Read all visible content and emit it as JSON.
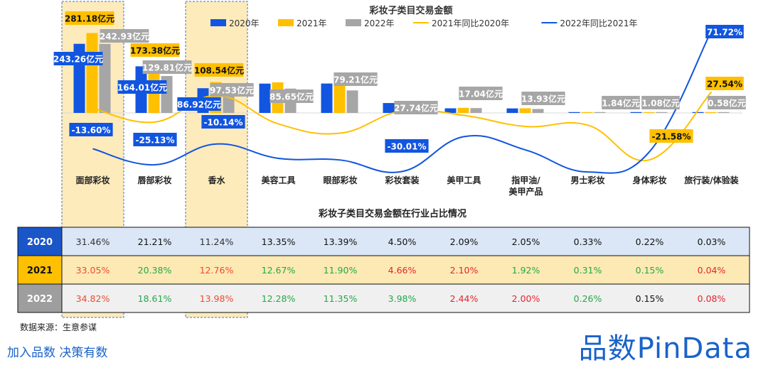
{
  "chart_data": [
    {
      "type": "bar",
      "title": "彩妆子类目交易金额",
      "categories": [
        "面部彩妆",
        "唇部彩妆",
        "香水",
        "美容工具",
        "眼部彩妆",
        "彩妆套装",
        "美甲工具",
        "指甲油/美甲产品",
        "男士彩妆",
        "身体彩妆",
        "旅行装/体验装"
      ],
      "category_lines": [
        [
          "面部彩妆"
        ],
        [
          "唇部彩妆"
        ],
        [
          "香水"
        ],
        [
          "美容工具"
        ],
        [
          "眼部彩妆"
        ],
        [
          "彩妆套装"
        ],
        [
          "美甲工具"
        ],
        [
          "指甲油/",
          "美甲产品"
        ],
        [
          "男士彩妆"
        ],
        [
          "身体彩妆"
        ],
        [
          "旅行装/体验装"
        ]
      ],
      "unit": "亿元",
      "series": [
        {
          "name": "2020年",
          "kind": "bar",
          "color": "#1155e0",
          "values": [
            243.26,
            164.01,
            86.92,
            103.2,
            103.5,
            34.8,
            16.2,
            15.9,
            2.55,
            1.7,
            0.23
          ]
        },
        {
          "name": "2021年",
          "kind": "bar",
          "color": "#ffc000",
          "values": [
            281.18,
            173.38,
            108.54,
            107.8,
            101.2,
            39.6,
            17.9,
            16.3,
            2.64,
            1.28,
            0.34
          ]
        },
        {
          "name": "2022年",
          "kind": "bar",
          "color": "#a6a6a6",
          "values": [
            242.93,
            129.81,
            97.53,
            85.65,
            79.21,
            27.74,
            17.04,
            13.93,
            1.84,
            1.08,
            0.58
          ]
        },
        {
          "name": "2021年同比2020年",
          "kind": "line",
          "color": "#ffc000",
          "values": [
            15.6,
            5.7,
            24.9,
            4.4,
            -2.3,
            13.8,
            10.5,
            2.5,
            3.5,
            -21.58,
            27.54
          ]
        },
        {
          "name": "2022年同比2021年",
          "kind": "line",
          "color": "#1155e0",
          "values": [
            -13.6,
            -25.13,
            -10.14,
            -20.5,
            -21.7,
            -30.01,
            -4.8,
            -14.5,
            -30.3,
            -15.6,
            71.72
          ]
        }
      ],
      "bar_labels": [
        {
          "index": 0,
          "series": "2020年",
          "text": "243.26亿元"
        },
        {
          "index": 0,
          "series": "2021年",
          "text": "281.18亿元"
        },
        {
          "index": 0,
          "series": "2022年",
          "text": "242.93亿元"
        },
        {
          "index": 1,
          "series": "2020年",
          "text": "164.01亿元"
        },
        {
          "index": 1,
          "series": "2021年",
          "text": "173.38亿元"
        },
        {
          "index": 1,
          "series": "2022年",
          "text": "129.81亿元"
        },
        {
          "index": 2,
          "series": "2020年",
          "text": "86.92亿元"
        },
        {
          "index": 2,
          "series": "2021年",
          "text": "108.54亿元"
        },
        {
          "index": 2,
          "series": "2022年",
          "text": "97.53亿元"
        },
        {
          "index": 3,
          "series": "2022年",
          "text": "85.65亿元"
        },
        {
          "index": 4,
          "series": "2022年",
          "text": "79.21亿元"
        },
        {
          "index": 5,
          "series": "2022年",
          "text": "27.74亿元"
        },
        {
          "index": 6,
          "series": "2022年",
          "text": "17.04亿元"
        },
        {
          "index": 7,
          "series": "2022年",
          "text": "13.93亿元"
        },
        {
          "index": 8,
          "series": "2022年",
          "text": "1.84亿元"
        },
        {
          "index": 9,
          "series": "2022年",
          "text": "1.08亿元"
        },
        {
          "index": 10,
          "series": "2022年",
          "text": "0.58亿元"
        }
      ],
      "line_labels": [
        {
          "index": 0,
          "series": "2022年同比2021年",
          "text": "-13.60%"
        },
        {
          "index": 1,
          "series": "2022年同比2021年",
          "text": "-25.13%"
        },
        {
          "index": 2,
          "series": "2022年同比2021年",
          "text": "-10.14%"
        },
        {
          "index": 5,
          "series": "2022年同比2021年",
          "text": "-30.01%"
        },
        {
          "index": 9,
          "series": "2021年同比2020年",
          "text": "-21.58%"
        },
        {
          "index": 10,
          "series": "2021年同比2020年",
          "text": "27.54%"
        },
        {
          "index": 10,
          "series": "2022年同比2021年",
          "text": "71.72%"
        }
      ],
      "highlighted_categories": [
        "面部彩妆",
        "香水"
      ],
      "legend_position": "top-center"
    },
    {
      "type": "table",
      "title": "彩妆子类目交易金额在行业占比情况",
      "rows": [
        {
          "year": "2020",
          "values": [
            "31.46%",
            "21.21%",
            "11.24%",
            "13.35%",
            "13.39%",
            "4.50%",
            "2.09%",
            "2.05%",
            "0.33%",
            "0.22%",
            "0.03%"
          ],
          "value_colors": [
            "#333333",
            "#111111",
            "#333333",
            "#111111",
            "#111111",
            "#111111",
            "#111111",
            "#111111",
            "#111111",
            "#111111",
            "#111111"
          ],
          "header_color": "#1a56c8",
          "row_color": "#dbe7f6"
        },
        {
          "year": "2021",
          "values": [
            "33.05%",
            "20.38%",
            "12.76%",
            "12.67%",
            "11.90%",
            "4.66%",
            "2.10%",
            "1.92%",
            "0.31%",
            "0.15%",
            "0.04%"
          ],
          "value_colors": [
            "#f04a2f",
            "#22a84a",
            "#f04a2f",
            "#22a84a",
            "#22a84a",
            "#e8232e",
            "#e8232e",
            "#22a84a",
            "#22a84a",
            "#22a84a",
            "#e8232e"
          ],
          "header_color": "#ffc000",
          "row_color": "#fde9b4"
        },
        {
          "year": "2022",
          "values": [
            "34.82%",
            "18.61%",
            "13.98%",
            "12.28%",
            "11.35%",
            "3.98%",
            "2.44%",
            "2.00%",
            "0.26%",
            "0.15%",
            "0.08%"
          ],
          "value_colors": [
            "#f04a2f",
            "#22a84a",
            "#f04a2f",
            "#22a84a",
            "#22a84a",
            "#22a84a",
            "#e8232e",
            "#e8232e",
            "#22a84a",
            "#111111",
            "#e8232e"
          ],
          "header_color": "#9e9e9e",
          "row_color": "#f0f0f0"
        }
      ]
    }
  ],
  "footer": {
    "source": "数据来源：生意参谋",
    "slogan": "加入品数 决策有数",
    "brand": "品数PinData"
  }
}
